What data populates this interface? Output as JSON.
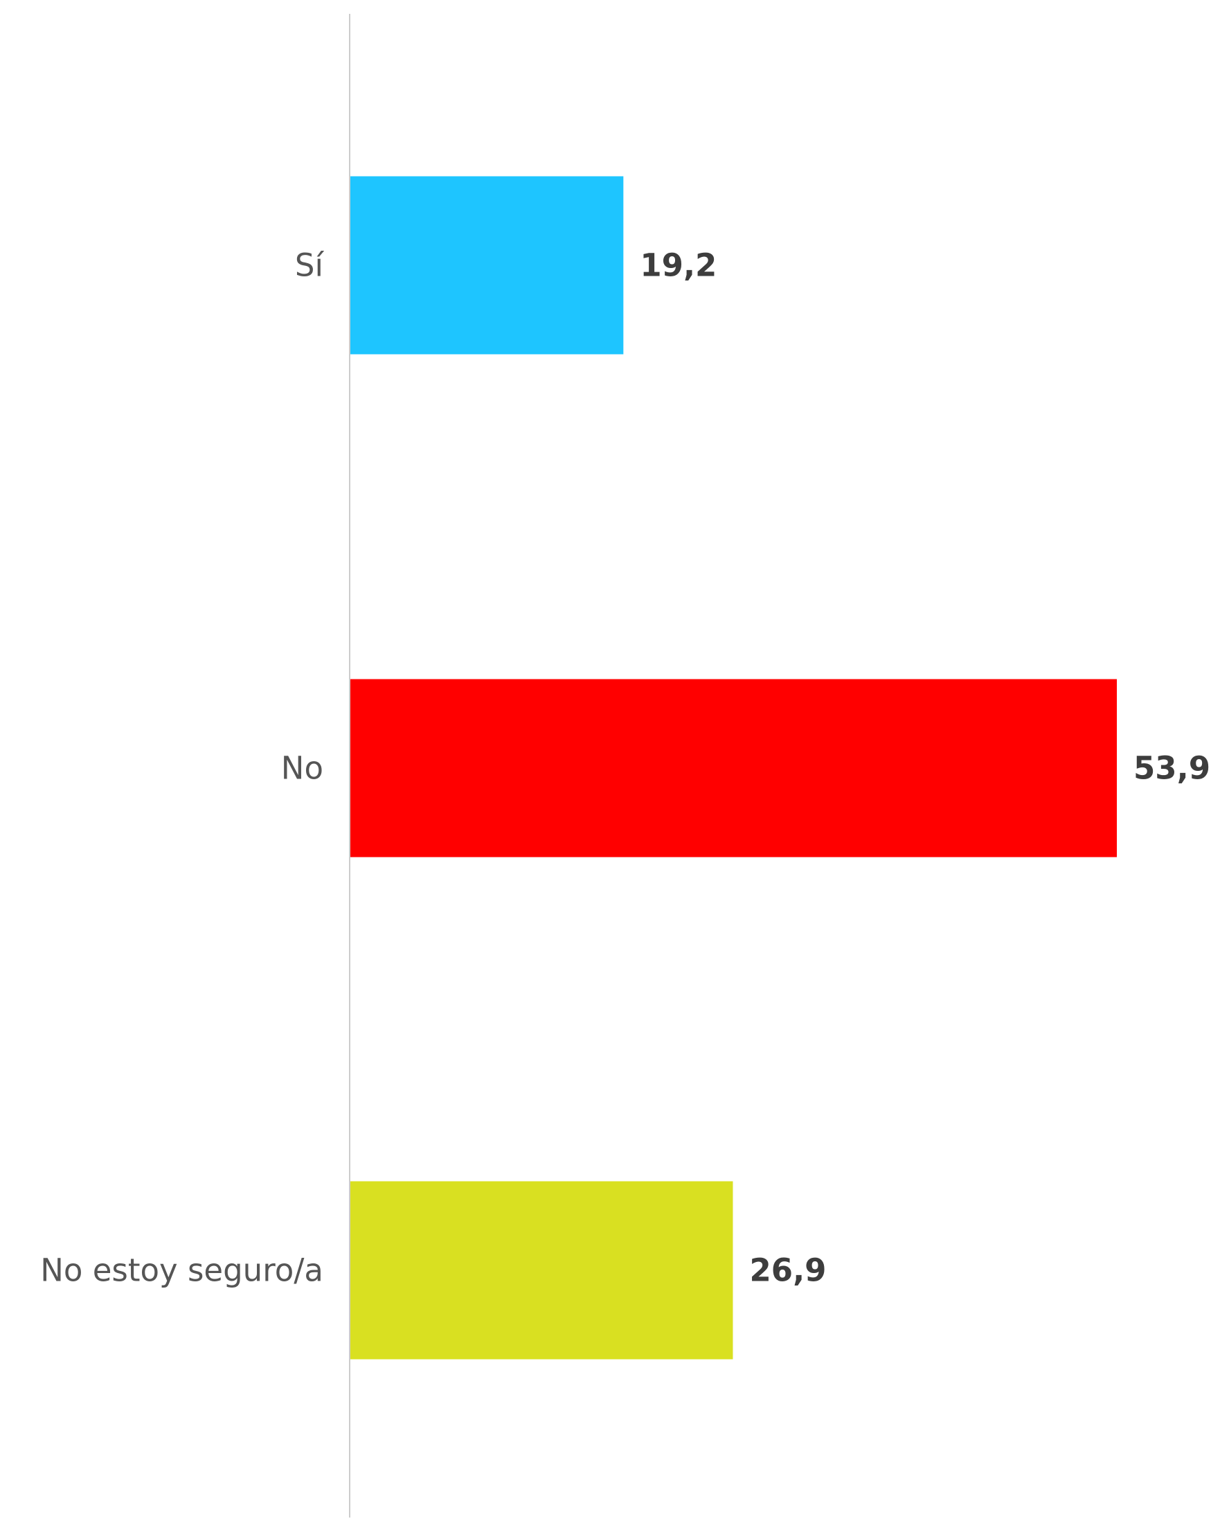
{
  "chart_data": {
    "type": "bar",
    "orientation": "horizontal",
    "categories": [
      "Sí",
      "No",
      "No estoy seguro/a"
    ],
    "values": [
      19.2,
      53.9,
      26.9
    ],
    "value_labels": [
      "19,2",
      "53,9",
      "26,9"
    ],
    "colors": [
      "#1ec5ff",
      "#ff0000",
      "#d9e021"
    ],
    "xlim": [
      0,
      53.9
    ],
    "title": "",
    "xlabel": "",
    "ylabel": "",
    "grid": false,
    "axis_color": "#cccccc",
    "category_label_color": "#555555",
    "value_label_color": "#3d3d3d"
  }
}
